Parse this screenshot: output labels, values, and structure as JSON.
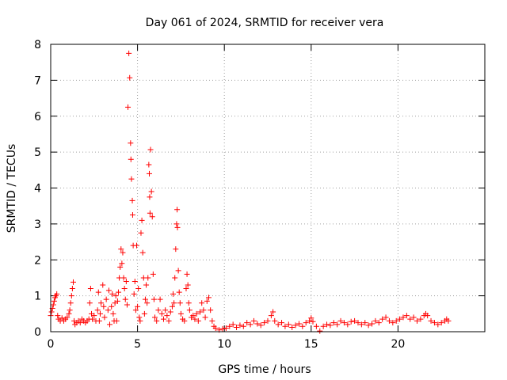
{
  "chart_data": {
    "type": "scatter",
    "title": "Day 061 of 2024, SRMTID for receiver vera",
    "xlabel": "GPS time / hours",
    "ylabel": "SRMTID / TECUs",
    "xlim": [
      0,
      25
    ],
    "ylim": [
      0,
      8
    ],
    "xticks": [
      0,
      5,
      10,
      15,
      20
    ],
    "yticks": [
      0,
      1,
      2,
      3,
      4,
      5,
      6,
      7,
      8
    ],
    "grid": true,
    "marker": "+",
    "color": "#ff0000",
    "series": [
      {
        "name": "SRMTID",
        "points": [
          [
            0.0,
            0.45
          ],
          [
            0.05,
            0.55
          ],
          [
            0.1,
            0.65
          ],
          [
            0.15,
            0.75
          ],
          [
            0.2,
            0.85
          ],
          [
            0.25,
            0.95
          ],
          [
            0.3,
            1.0
          ],
          [
            0.35,
            1.05
          ],
          [
            0.4,
            0.45
          ],
          [
            0.45,
            0.35
          ],
          [
            0.55,
            0.3
          ],
          [
            0.65,
            0.38
          ],
          [
            0.75,
            0.3
          ],
          [
            0.85,
            0.35
          ],
          [
            0.95,
            0.4
          ],
          [
            1.05,
            0.5
          ],
          [
            1.1,
            0.6
          ],
          [
            1.15,
            0.8
          ],
          [
            1.2,
            1.0
          ],
          [
            1.25,
            1.2
          ],
          [
            1.3,
            1.38
          ],
          [
            1.35,
            0.3
          ],
          [
            1.4,
            0.2
          ],
          [
            1.5,
            0.25
          ],
          [
            1.6,
            0.3
          ],
          [
            1.7,
            0.25
          ],
          [
            1.8,
            0.35
          ],
          [
            1.9,
            0.3
          ],
          [
            2.0,
            0.25
          ],
          [
            2.1,
            0.3
          ],
          [
            2.2,
            0.35
          ],
          [
            2.25,
            0.8
          ],
          [
            2.3,
            1.2
          ],
          [
            2.35,
            0.5
          ],
          [
            2.4,
            0.35
          ],
          [
            2.5,
            0.45
          ],
          [
            2.6,
            0.3
          ],
          [
            2.7,
            0.6
          ],
          [
            2.75,
            1.1
          ],
          [
            2.8,
            0.3
          ],
          [
            2.85,
            0.5
          ],
          [
            2.9,
            0.8
          ],
          [
            3.0,
            1.3
          ],
          [
            3.05,
            0.7
          ],
          [
            3.1,
            0.4
          ],
          [
            3.2,
            0.9
          ],
          [
            3.3,
            0.6
          ],
          [
            3.35,
            1.15
          ],
          [
            3.4,
            0.2
          ],
          [
            3.5,
            0.7
          ],
          [
            3.55,
            1.05
          ],
          [
            3.6,
            0.5
          ],
          [
            3.65,
            0.3
          ],
          [
            3.7,
            0.8
          ],
          [
            3.75,
            1.0
          ],
          [
            3.8,
            0.3
          ],
          [
            3.85,
            0.85
          ],
          [
            3.9,
            1.1
          ],
          [
            3.95,
            1.5
          ],
          [
            4.0,
            1.8
          ],
          [
            4.05,
            2.3
          ],
          [
            4.1,
            1.9
          ],
          [
            4.15,
            2.2
          ],
          [
            4.2,
            1.5
          ],
          [
            4.25,
            1.2
          ],
          [
            4.3,
            0.9
          ],
          [
            4.35,
            1.4
          ],
          [
            4.4,
            0.75
          ],
          [
            4.45,
            6.25
          ],
          [
            4.5,
            7.75
          ],
          [
            4.55,
            7.07
          ],
          [
            4.6,
            5.25
          ],
          [
            4.62,
            4.8
          ],
          [
            4.65,
            4.25
          ],
          [
            4.7,
            3.65
          ],
          [
            4.72,
            3.25
          ],
          [
            4.75,
            2.4
          ],
          [
            4.8,
            1.05
          ],
          [
            4.85,
            1.4
          ],
          [
            4.9,
            0.6
          ],
          [
            4.95,
            2.4
          ],
          [
            5.0,
            0.7
          ],
          [
            5.05,
            1.2
          ],
          [
            5.1,
            0.4
          ],
          [
            5.15,
            0.3
          ],
          [
            5.2,
            2.75
          ],
          [
            5.25,
            3.1
          ],
          [
            5.3,
            2.2
          ],
          [
            5.35,
            1.5
          ],
          [
            5.4,
            0.5
          ],
          [
            5.45,
            0.9
          ],
          [
            5.5,
            1.3
          ],
          [
            5.55,
            0.8
          ],
          [
            5.6,
            1.5
          ],
          [
            5.65,
            4.65
          ],
          [
            5.68,
            4.4
          ],
          [
            5.7,
            3.75
          ],
          [
            5.72,
            3.3
          ],
          [
            5.75,
            5.07
          ],
          [
            5.8,
            3.9
          ],
          [
            5.85,
            3.2
          ],
          [
            5.9,
            1.6
          ],
          [
            5.95,
            0.9
          ],
          [
            6.0,
            0.4
          ],
          [
            6.1,
            0.3
          ],
          [
            6.2,
            0.6
          ],
          [
            6.3,
            0.9
          ],
          [
            6.4,
            0.5
          ],
          [
            6.5,
            0.35
          ],
          [
            6.6,
            0.6
          ],
          [
            6.7,
            0.45
          ],
          [
            6.8,
            0.3
          ],
          [
            6.9,
            0.55
          ],
          [
            7.0,
            0.7
          ],
          [
            7.05,
            1.05
          ],
          [
            7.1,
            0.8
          ],
          [
            7.15,
            1.5
          ],
          [
            7.2,
            2.3
          ],
          [
            7.25,
            3.0
          ],
          [
            7.28,
            3.4
          ],
          [
            7.3,
            2.9
          ],
          [
            7.35,
            1.7
          ],
          [
            7.4,
            1.1
          ],
          [
            7.45,
            0.8
          ],
          [
            7.5,
            0.5
          ],
          [
            7.6,
            0.35
          ],
          [
            7.7,
            0.3
          ],
          [
            7.8,
            1.2
          ],
          [
            7.85,
            1.6
          ],
          [
            7.9,
            1.3
          ],
          [
            7.95,
            0.8
          ],
          [
            8.0,
            0.6
          ],
          [
            8.1,
            0.4
          ],
          [
            8.2,
            0.45
          ],
          [
            8.3,
            0.35
          ],
          [
            8.4,
            0.5
          ],
          [
            8.5,
            0.3
          ],
          [
            8.6,
            0.55
          ],
          [
            8.7,
            0.8
          ],
          [
            8.8,
            0.6
          ],
          [
            8.9,
            0.4
          ],
          [
            9.0,
            0.85
          ],
          [
            9.1,
            0.95
          ],
          [
            9.2,
            0.6
          ],
          [
            9.3,
            0.3
          ],
          [
            9.4,
            0.15
          ],
          [
            9.5,
            0.1
          ],
          [
            9.7,
            0.05
          ],
          [
            9.9,
            0.08
          ],
          [
            10.1,
            0.1
          ],
          [
            10.3,
            0.15
          ],
          [
            10.5,
            0.2
          ],
          [
            10.7,
            0.12
          ],
          [
            10.9,
            0.18
          ],
          [
            11.1,
            0.15
          ],
          [
            11.3,
            0.25
          ],
          [
            11.5,
            0.2
          ],
          [
            11.7,
            0.3
          ],
          [
            11.9,
            0.22
          ],
          [
            12.1,
            0.18
          ],
          [
            12.3,
            0.25
          ],
          [
            12.5,
            0.3
          ],
          [
            12.7,
            0.45
          ],
          [
            12.8,
            0.55
          ],
          [
            12.9,
            0.3
          ],
          [
            13.1,
            0.2
          ],
          [
            13.3,
            0.25
          ],
          [
            13.5,
            0.15
          ],
          [
            13.7,
            0.2
          ],
          [
            13.9,
            0.12
          ],
          [
            14.1,
            0.18
          ],
          [
            14.3,
            0.22
          ],
          [
            14.5,
            0.15
          ],
          [
            14.7,
            0.25
          ],
          [
            14.9,
            0.3
          ],
          [
            15.0,
            0.38
          ],
          [
            15.1,
            0.28
          ],
          [
            15.3,
            0.15
          ],
          [
            15.5,
            0.02
          ],
          [
            15.7,
            0.15
          ],
          [
            15.9,
            0.2
          ],
          [
            16.1,
            0.18
          ],
          [
            16.3,
            0.25
          ],
          [
            16.5,
            0.2
          ],
          [
            16.7,
            0.3
          ],
          [
            16.9,
            0.25
          ],
          [
            17.1,
            0.2
          ],
          [
            17.3,
            0.28
          ],
          [
            17.5,
            0.3
          ],
          [
            17.7,
            0.25
          ],
          [
            17.9,
            0.2
          ],
          [
            18.1,
            0.25
          ],
          [
            18.3,
            0.18
          ],
          [
            18.5,
            0.22
          ],
          [
            18.7,
            0.3
          ],
          [
            18.9,
            0.25
          ],
          [
            19.1,
            0.35
          ],
          [
            19.3,
            0.4
          ],
          [
            19.5,
            0.3
          ],
          [
            19.7,
            0.25
          ],
          [
            19.9,
            0.3
          ],
          [
            20.1,
            0.35
          ],
          [
            20.3,
            0.4
          ],
          [
            20.5,
            0.45
          ],
          [
            20.7,
            0.35
          ],
          [
            20.9,
            0.4
          ],
          [
            21.1,
            0.3
          ],
          [
            21.3,
            0.35
          ],
          [
            21.5,
            0.45
          ],
          [
            21.6,
            0.5
          ],
          [
            21.7,
            0.45
          ],
          [
            21.9,
            0.3
          ],
          [
            22.1,
            0.25
          ],
          [
            22.3,
            0.2
          ],
          [
            22.5,
            0.25
          ],
          [
            22.7,
            0.3
          ],
          [
            22.8,
            0.35
          ],
          [
            22.9,
            0.3
          ]
        ]
      }
    ]
  }
}
